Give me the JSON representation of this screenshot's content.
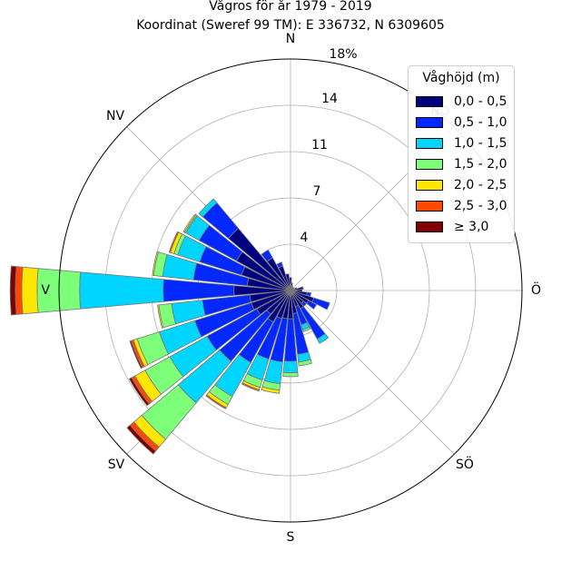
{
  "title_line1": "Vågros för år 1979 - 2019",
  "title_line2": "Koordinat (Sweref 99 TM): E 336732, N 6309605",
  "legend": {
    "title": "Våghöjd (m)",
    "items": [
      {
        "label": "0,0 - 0,5",
        "color": "#000080"
      },
      {
        "label": "0,5 - 1,0",
        "color": "#0028ff"
      },
      {
        "label": "1,0 - 1,5",
        "color": "#00d5ff"
      },
      {
        "label": "1,5 - 2,0",
        "color": "#7dff7a"
      },
      {
        "label": "2,0 - 2,5",
        "color": "#ffe600"
      },
      {
        "label": "2,5 - 3,0",
        "color": "#ff4800"
      },
      {
        "label": "≥ 3,0",
        "color": "#800000"
      }
    ]
  },
  "chart_data": {
    "type": "windrose",
    "direction_labels": [
      "N",
      "NO",
      "Ö",
      "SÖ",
      "S",
      "SV",
      "V",
      "NV"
    ],
    "radial_ticks": [
      "4",
      "7",
      "11",
      "14",
      "18%"
    ],
    "radial_tick_values": [
      3.6,
      7.2,
      10.8,
      14.4,
      18.0
    ],
    "rmax": 18.0,
    "grid": true,
    "legend_position": "top-right",
    "series_names": [
      "0,0 - 0,5",
      "0,5 - 1,0",
      "1,0 - 1,5",
      "1,5 - 2,0",
      "2,0 - 2,5",
      "2,5 - 3,0",
      "≥ 3,0"
    ],
    "sectors": [
      {
        "dir": 0,
        "values": [
          1.0,
          0,
          0,
          0,
          0,
          0,
          0
        ]
      },
      {
        "dir": 11.25,
        "values": [
          0.6,
          0,
          0,
          0,
          0,
          0,
          0
        ]
      },
      {
        "dir": 22.5,
        "values": [
          0.4,
          0,
          0,
          0,
          0,
          0,
          0
        ]
      },
      {
        "dir": 33.75,
        "values": [
          0.3,
          0,
          0,
          0,
          0,
          0,
          0
        ]
      },
      {
        "dir": 45,
        "values": [
          0.3,
          0,
          0,
          0,
          0,
          0,
          0
        ]
      },
      {
        "dir": 56.25,
        "values": [
          0.3,
          0,
          0,
          0,
          0,
          0,
          0
        ]
      },
      {
        "dir": 67.5,
        "values": [
          0.5,
          0,
          0,
          0,
          0,
          0,
          0
        ]
      },
      {
        "dir": 78.75,
        "values": [
          1.0,
          0,
          0,
          0,
          0,
          0,
          0
        ]
      },
      {
        "dir": 90,
        "values": [
          0.9,
          0,
          0,
          0,
          0,
          0,
          0
        ]
      },
      {
        "dir": 101.25,
        "values": [
          1.3,
          0.3,
          0,
          0,
          0,
          0,
          0
        ]
      },
      {
        "dir": 112.5,
        "values": [
          1.9,
          1.3,
          0,
          0,
          0,
          0,
          0
        ]
      },
      {
        "dir": 123.75,
        "values": [
          1.6,
          0.7,
          0,
          0,
          0,
          0,
          0
        ]
      },
      {
        "dir": 135,
        "values": [
          1.3,
          0.3,
          0,
          0,
          0,
          0,
          0
        ]
      },
      {
        "dir": 146.25,
        "values": [
          1.6,
          2.7,
          0.4,
          0,
          0,
          0,
          0
        ]
      },
      {
        "dir": 157.5,
        "values": [
          1.3,
          1.5,
          0.4,
          0.15,
          0,
          0,
          0
        ]
      },
      {
        "dir": 168.75,
        "values": [
          1.8,
          3.2,
          0.6,
          0.3,
          0,
          0,
          0
        ]
      },
      {
        "dir": 180,
        "values": [
          2.2,
          3.3,
          0.9,
          0.3,
          0,
          0,
          0
        ]
      },
      {
        "dir": 191.25,
        "values": [
          2.2,
          3.4,
          1.7,
          0.5,
          0.25,
          0,
          0
        ]
      },
      {
        "dir": 202.5,
        "values": [
          2.3,
          3.3,
          1.7,
          0.6,
          0.2,
          0.1,
          0
        ]
      },
      {
        "dir": 213.75,
        "values": [
          2.8,
          3.6,
          3.0,
          0.7,
          0.3,
          0.1,
          0
        ]
      },
      {
        "dir": 225,
        "values": [
          2.4,
          4.8,
          4.2,
          3.7,
          0.8,
          0.4,
          0.3
        ]
      },
      {
        "dir": 236.25,
        "values": [
          3.0,
          4.4,
          3.3,
          2.2,
          0.9,
          0.3,
          0.2
        ]
      },
      {
        "dir": 247.5,
        "values": [
          3.2,
          4.6,
          2.9,
          1.8,
          0.3,
          0.2,
          0.1
        ]
      },
      {
        "dir": 258.75,
        "values": [
          3.2,
          3.7,
          2.4,
          1.0,
          0.1,
          0,
          0
        ]
      },
      {
        "dir": 270,
        "values": [
          4.4,
          5.5,
          6.5,
          3.3,
          1.2,
          0.5,
          0.4
        ]
      },
      {
        "dir": 281.25,
        "values": [
          3.4,
          4.2,
          2.4,
          0.7,
          0.1,
          0,
          0
        ]
      },
      {
        "dir": 292.5,
        "values": [
          4.0,
          3.4,
          1.8,
          0.3,
          0.3,
          0.1,
          0
        ]
      },
      {
        "dir": 303.75,
        "values": [
          4.8,
          3.3,
          1.2,
          0.1,
          0.1,
          0,
          0
        ]
      },
      {
        "dir": 315,
        "values": [
          6.3,
          2.6,
          0.4,
          0,
          0,
          0,
          0
        ]
      },
      {
        "dir": 326.25,
        "values": [
          2.9,
          0.7,
          0,
          0,
          0,
          0,
          0
        ]
      },
      {
        "dir": 337.5,
        "values": [
          2.0,
          0.3,
          0,
          0,
          0,
          0,
          0
        ]
      },
      {
        "dir": 348.75,
        "values": [
          1.3,
          0,
          0,
          0,
          0,
          0,
          0
        ]
      }
    ]
  }
}
